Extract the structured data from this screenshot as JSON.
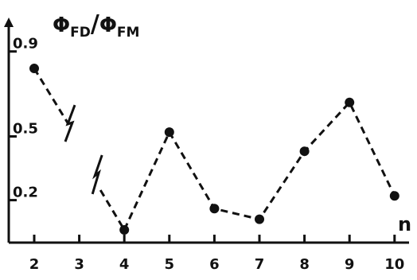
{
  "chart_data": {
    "type": "line",
    "ylabel_parts": {
      "phi1": "Φ",
      "sub1": "FD",
      "slash": "/",
      "phi2": "Φ",
      "sub2": "FM"
    },
    "xlabel": "n",
    "x_ticks": [
      "2",
      "3",
      "4",
      "5",
      "6",
      "7",
      "8",
      "9",
      "10"
    ],
    "y_ticks": [
      "0.9",
      "0.5",
      "0.2"
    ],
    "xlim": [
      2,
      10
    ],
    "ylim": [
      0.0,
      1.0
    ],
    "grid": false,
    "series": [
      {
        "x": [
          2
        ],
        "y": [
          0.82
        ],
        "trailing_break": true
      },
      {
        "x": [
          4,
          5,
          6,
          7,
          8,
          9,
          10
        ],
        "y": [
          0.06,
          0.52,
          0.16,
          0.11,
          0.43,
          0.66,
          0.22
        ],
        "leading_break": true
      }
    ]
  }
}
